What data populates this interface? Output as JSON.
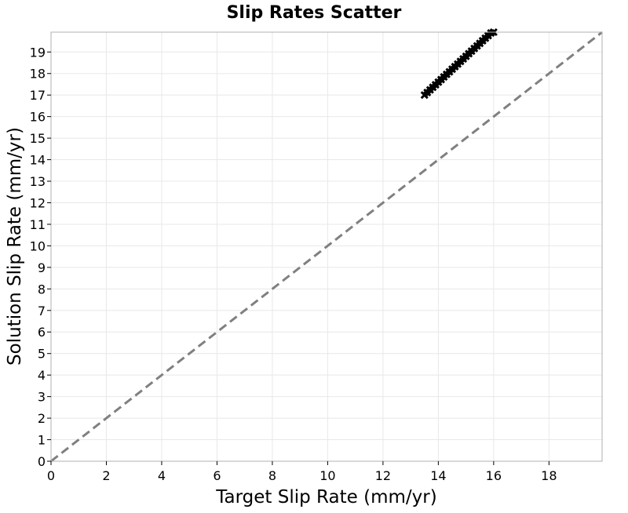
{
  "chart_data": {
    "type": "scatter",
    "title": "Slip Rates Scatter",
    "xlabel": "Target Slip Rate (mm/yr)",
    "ylabel": "Solution Slip Rate (mm/yr)",
    "xlim": [
      0,
      19.92
    ],
    "ylim": [
      0,
      19.92
    ],
    "xticks": [
      0,
      2,
      4,
      6,
      8,
      10,
      12,
      14,
      16,
      18
    ],
    "yticks": [
      0,
      1,
      2,
      3,
      4,
      5,
      6,
      7,
      8,
      9,
      10,
      11,
      12,
      13,
      14,
      15,
      16,
      17,
      18,
      19
    ],
    "grid": true,
    "legend": "none",
    "reference_line": {
      "x": [
        0,
        19.92
      ],
      "y": [
        0,
        19.92
      ],
      "style": "dashed",
      "color": "#808080"
    },
    "series": [
      {
        "marker": "x",
        "color": "#000000",
        "x": [
          13.5,
          13.6,
          13.7,
          13.8,
          13.9,
          14.0,
          14.1,
          14.2,
          14.3,
          14.4,
          14.5,
          14.6,
          14.7,
          14.8,
          14.9,
          15.0,
          15.1,
          15.2,
          15.3,
          15.4,
          15.5,
          15.6,
          15.7,
          15.8,
          15.9,
          16.0
        ],
        "y": [
          17.0,
          17.12,
          17.24,
          17.36,
          17.48,
          17.6,
          17.72,
          17.84,
          17.96,
          18.08,
          18.2,
          18.32,
          18.44,
          18.56,
          18.68,
          18.8,
          18.92,
          19.04,
          19.16,
          19.28,
          19.4,
          19.52,
          19.64,
          19.76,
          19.88,
          19.92
        ]
      }
    ]
  },
  "colors": {
    "grid": "#e8e8e8",
    "frame": "#b0b0b0",
    "reference": "#808080",
    "marker": "#000000"
  }
}
